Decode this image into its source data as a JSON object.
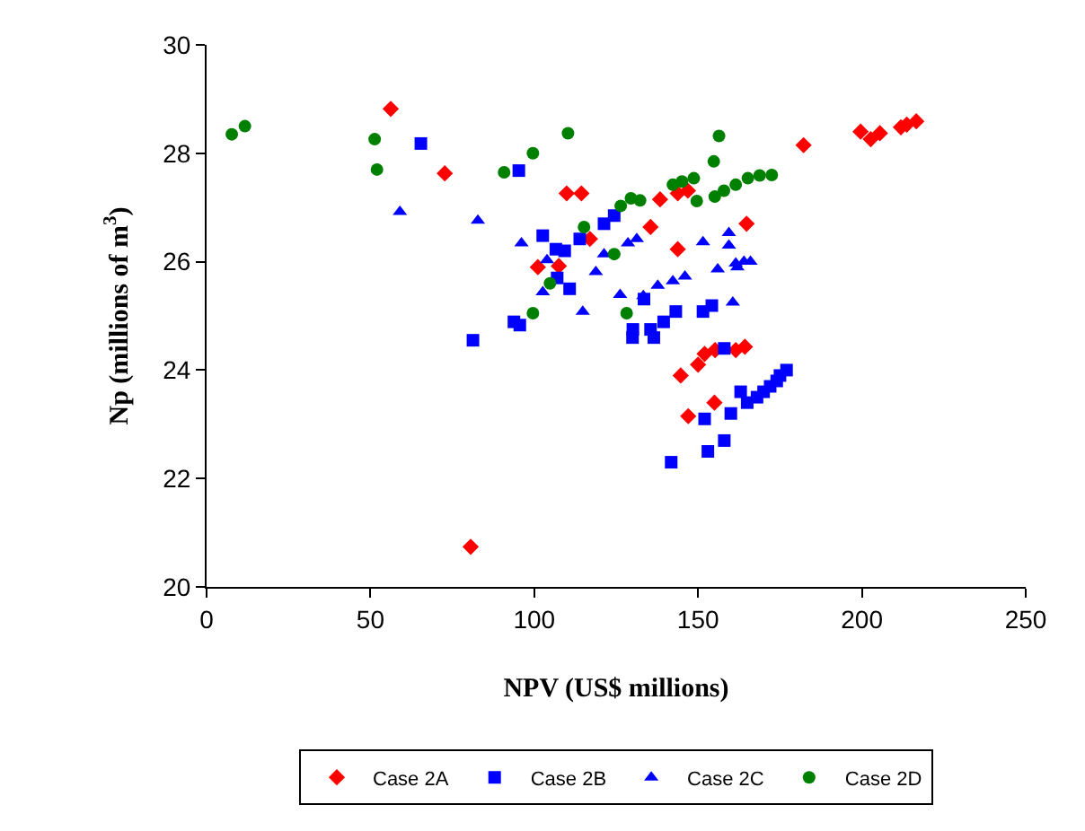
{
  "chart_data": {
    "type": "scatter",
    "xlabel": "NPV (US$ millions)",
    "ylabel": "Np (millions of m$^{3}$)",
    "xlim": [
      0,
      250
    ],
    "xticks": [
      0,
      50,
      100,
      150,
      200,
      250
    ],
    "ylim": [
      20,
      30
    ],
    "yticks": [
      20,
      22,
      24,
      26,
      28,
      30
    ],
    "legend": "bottom",
    "series": [
      {
        "name": "Case 2A",
        "color": "#ff0000",
        "marker": "diamond",
        "x": [
          56.2,
          72.7,
          109.9,
          114.4,
          138.4,
          143.8,
          146.9,
          135.5,
          117,
          143.8,
          101.1,
          107.5,
          164.8,
          80.6,
          144.7,
          155.2,
          161.5,
          164.3,
          152,
          147,
          155,
          150,
          182.2,
          199.6,
          202.7,
          205.5,
          211.9,
          213.7,
          216.6
        ],
        "values": [
          28.82,
          27.63,
          27.26,
          27.26,
          27.15,
          27.26,
          27.31,
          26.64,
          26.42,
          26.23,
          25.9,
          25.92,
          26.7,
          20.74,
          23.9,
          24.37,
          24.37,
          24.43,
          24.3,
          23.15,
          23.4,
          24.1,
          28.15,
          28.4,
          28.26,
          28.37,
          28.48,
          28.53,
          28.59
        ]
      },
      {
        "name": "Case 2B",
        "color": "#0000ff",
        "marker": "square",
        "x": [
          65.4,
          95.3,
          121.3,
          124.4,
          102.6,
          113.9,
          106.6,
          109.3,
          107,
          110.8,
          133.5,
          143.2,
          93.8,
          95.6,
          130.1,
          130,
          135.5,
          139.5,
          136.5,
          81.3,
          141.8,
          151.5,
          154.2,
          158,
          152,
          153,
          158,
          160,
          163,
          165,
          168,
          170,
          172,
          174,
          175,
          177
        ],
        "values": [
          28.18,
          27.68,
          26.7,
          26.85,
          26.48,
          26.42,
          26.23,
          26.2,
          25.7,
          25.5,
          25.31,
          25.08,
          24.89,
          24.83,
          24.75,
          24.6,
          24.75,
          24.89,
          24.6,
          24.55,
          22.3,
          25.08,
          25.19,
          24.4,
          23.1,
          22.5,
          22.7,
          23.2,
          23.6,
          23.4,
          23.5,
          23.6,
          23.7,
          23.8,
          23.9,
          24.0
        ]
      },
      {
        "name": "Case 2C",
        "color": "#0000ff",
        "marker": "triangle",
        "x": [
          59,
          82.8,
          96.1,
          121.3,
          128.6,
          131.3,
          103.9,
          118.8,
          102.6,
          126.2,
          137.7,
          142.3,
          114.8,
          151.5,
          159.4,
          159.4,
          156,
          161.5,
          166,
          146,
          133.3,
          160.6,
          162,
          164
        ],
        "values": [
          26.92,
          26.76,
          26.34,
          26.14,
          26.34,
          26.42,
          26.03,
          25.81,
          25.44,
          25.39,
          25.56,
          25.64,
          25.08,
          26.36,
          26.53,
          26.3,
          25.86,
          25.97,
          26.0,
          25.73,
          25.37,
          25.25,
          25.9,
          26.0
        ]
      },
      {
        "name": "Case 2D",
        "color": "#008000",
        "marker": "circle",
        "x": [
          7.7,
          11.7,
          51.3,
          52,
          110.3,
          99.6,
          90.8,
          126.4,
          129.5,
          132.3,
          115.2,
          124.4,
          104.8,
          99.6,
          128.2,
          156.4,
          154.8,
          142.3,
          145.1,
          148.7,
          149.6,
          155.1,
          157.9,
          161.5,
          165.2,
          168.8,
          172.5
        ],
        "values": [
          28.35,
          28.5,
          28.26,
          27.7,
          28.37,
          28.0,
          27.65,
          27.03,
          27.17,
          27.13,
          26.64,
          26.14,
          25.6,
          25.05,
          25.05,
          28.32,
          27.85,
          27.42,
          27.48,
          27.54,
          27.12,
          27.2,
          27.31,
          27.42,
          27.54,
          27.59,
          27.6
        ]
      }
    ]
  }
}
